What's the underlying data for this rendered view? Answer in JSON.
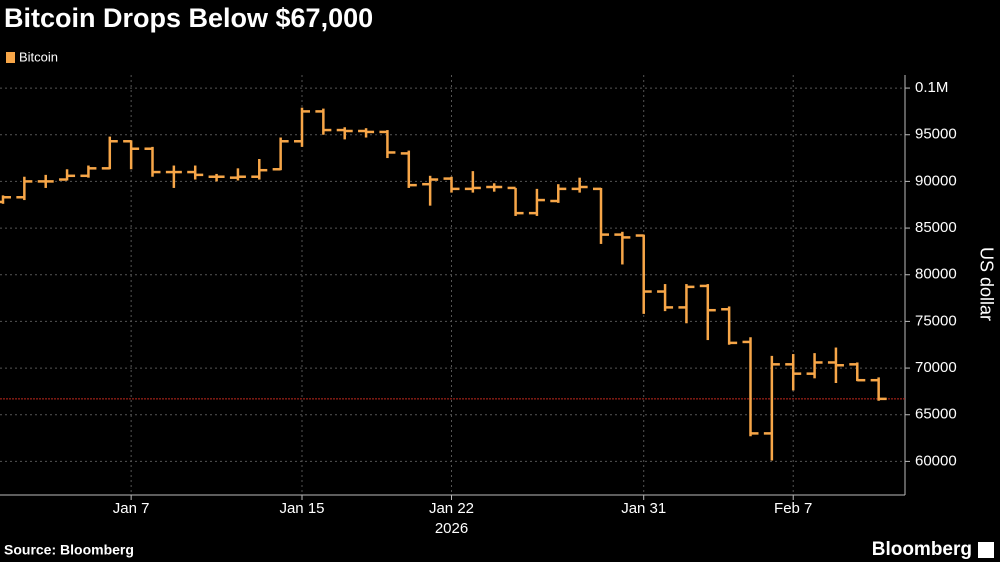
{
  "chart_data": {
    "type": "ohlc",
    "title": "Bitcoin Drops Below $67,000",
    "source": "Source: Bloomberg",
    "brand": "Bloomberg",
    "ylabel": "US dollar",
    "year": "2026",
    "x": [
      "2026-01-01",
      "2026-01-02",
      "2026-01-03",
      "2026-01-04",
      "2026-01-05",
      "2026-01-06",
      "2026-01-07",
      "2026-01-08",
      "2026-01-09",
      "2026-01-10",
      "2026-01-11",
      "2026-01-12",
      "2026-01-13",
      "2026-01-14",
      "2026-01-15",
      "2026-01-16",
      "2026-01-17",
      "2026-01-18",
      "2026-01-19",
      "2026-01-20",
      "2026-01-21",
      "2026-01-22",
      "2026-01-23",
      "2026-01-24",
      "2026-01-25",
      "2026-01-26",
      "2026-01-27",
      "2026-01-28",
      "2026-01-29",
      "2026-01-30",
      "2026-01-31",
      "2026-02-01",
      "2026-02-02",
      "2026-02-03",
      "2026-02-04",
      "2026-02-05",
      "2026-02-06",
      "2026-02-07",
      "2026-02-08",
      "2026-02-09",
      "2026-02-10",
      "2026-02-11"
    ],
    "series": [
      {
        "name": "Bitcoin",
        "color": "#f7a648",
        "open": [
          87800,
          88300,
          90000,
          90200,
          90600,
          91400,
          94300,
          93500,
          91000,
          91000,
          90500,
          90400,
          90500,
          91300,
          94300,
          97500,
          95500,
          95400,
          95300,
          93000,
          89700,
          90300,
          89200,
          89400,
          89300,
          86600,
          87900,
          89200,
          89200,
          84300,
          84200,
          78200,
          76500,
          78800,
          76300,
          72800,
          63000,
          70400,
          69400,
          70600,
          70400,
          68700
        ],
        "high": [
          88500,
          90500,
          90700,
          91300,
          91700,
          94800,
          94400,
          93700,
          91700,
          91700,
          90800,
          91400,
          92400,
          94700,
          97900,
          97800,
          95800,
          95700,
          95500,
          93300,
          90600,
          90500,
          91100,
          89800,
          89300,
          89200,
          89700,
          90400,
          89300,
          84600,
          84300,
          79000,
          79000,
          79000,
          76600,
          73300,
          71300,
          71500,
          71600,
          72200,
          70600,
          69000
        ],
        "low": [
          87600,
          88000,
          89300,
          90100,
          90400,
          91300,
          91300,
          90500,
          89300,
          90200,
          90000,
          90100,
          90200,
          91200,
          93700,
          95000,
          94500,
          94700,
          92500,
          89300,
          87400,
          88800,
          88800,
          88900,
          86300,
          86300,
          87700,
          88800,
          83300,
          81100,
          75800,
          76100,
          74800,
          73000,
          72500,
          62700,
          60100,
          67600,
          68900,
          68400,
          68600,
          66500
        ],
        "close": [
          88300,
          90000,
          90000,
          90600,
          91400,
          94300,
          93500,
          91000,
          91000,
          90700,
          90500,
          90500,
          91200,
          94300,
          97500,
          95500,
          95400,
          95300,
          93100,
          89600,
          90200,
          89200,
          89300,
          89400,
          86600,
          88000,
          89200,
          89400,
          84300,
          84000,
          78200,
          76500,
          78700,
          76200,
          72700,
          63000,
          70400,
          69400,
          70600,
          70300,
          68700,
          66700
        ]
      }
    ],
    "xlim": [
      "2026-01-01",
      "2026-02-12"
    ],
    "xticks": [
      {
        "value": "2026-01-07",
        "label": "Jan 7"
      },
      {
        "value": "2026-01-15",
        "label": "Jan 15"
      },
      {
        "value": "2026-01-22",
        "label": "Jan 22"
      },
      {
        "value": "2026-01-31",
        "label": "Jan 31"
      },
      {
        "value": "2026-02-07",
        "label": "Feb 7"
      }
    ],
    "ylim": [
      56400,
      101400
    ],
    "yticks": [
      60000,
      65000,
      70000,
      75000,
      80000,
      85000,
      90000,
      95000,
      {
        "value": 100000,
        "label": "0.1M"
      }
    ],
    "hline": 66700,
    "hline_color": "#c0281e",
    "grid": true
  }
}
